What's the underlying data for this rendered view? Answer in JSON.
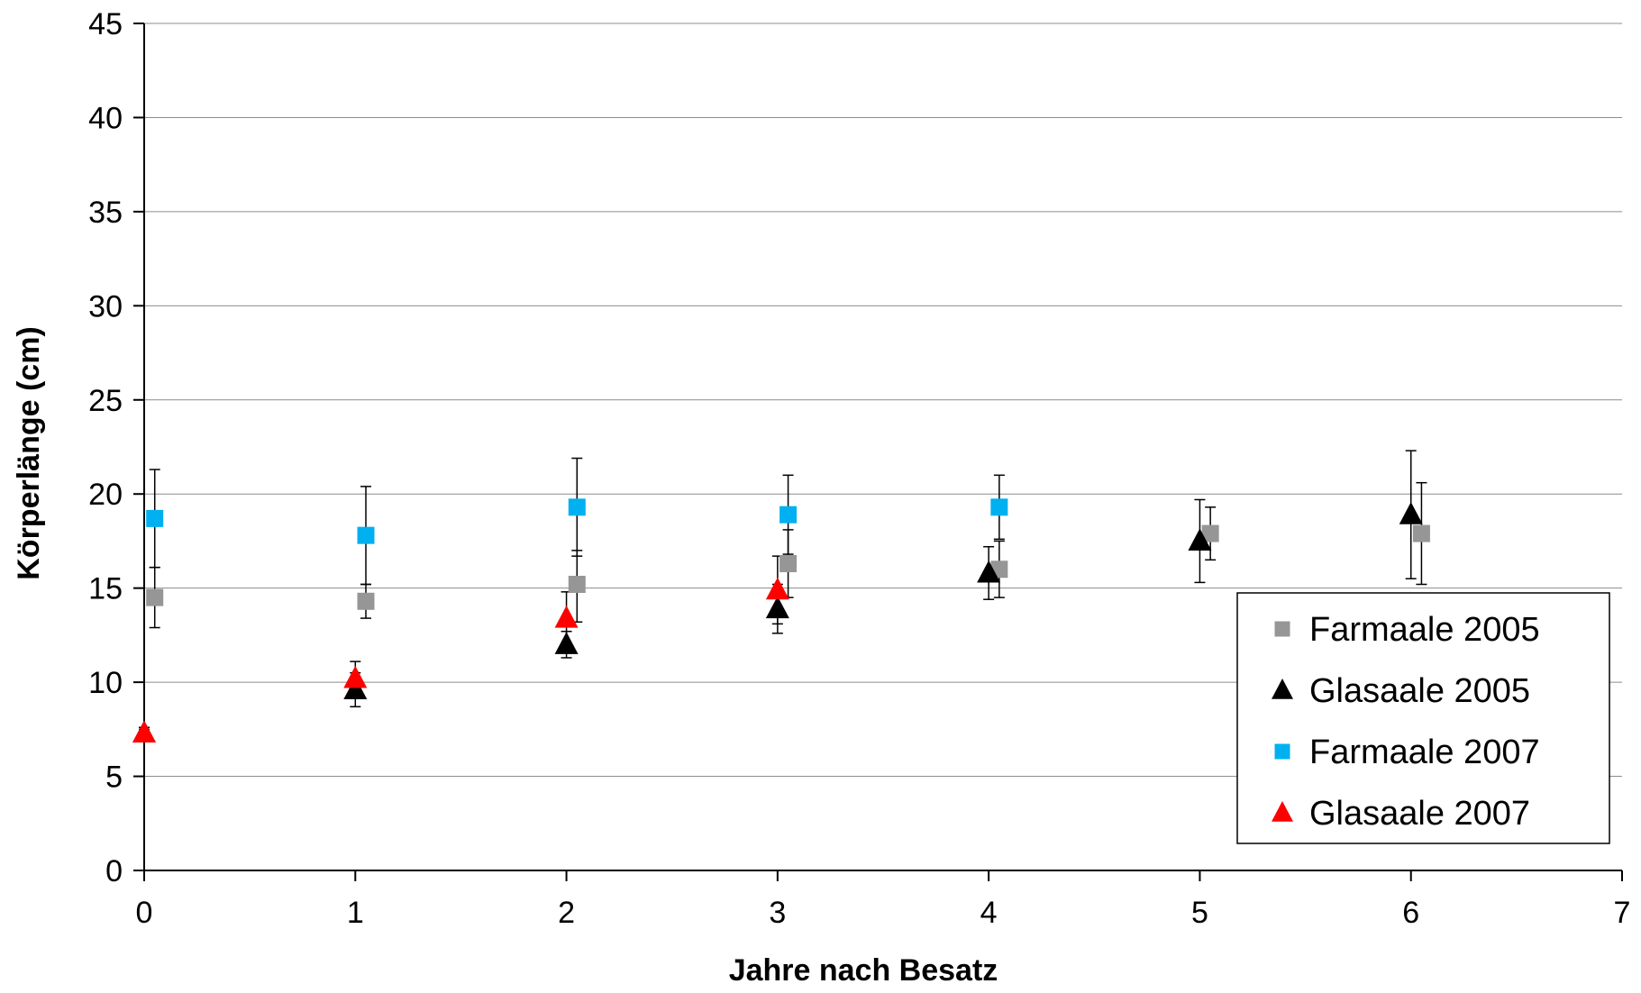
{
  "chart_data": {
    "type": "scatter",
    "title": "",
    "xlabel": "Jahre nach Besatz",
    "ylabel": "Körperlänge (cm)",
    "xlim": [
      0,
      7
    ],
    "ylim": [
      0,
      45
    ],
    "xticks": [
      0,
      1,
      2,
      3,
      4,
      5,
      6,
      7
    ],
    "yticks": [
      0,
      5,
      10,
      15,
      20,
      25,
      30,
      35,
      40,
      45
    ],
    "grid": "horizontal",
    "legend_position": "bottom-right",
    "series": [
      {
        "name": "Farmaale 2005",
        "marker": "square",
        "color": "#969696",
        "points": [
          {
            "x": 0.05,
            "y": 14.5,
            "lo": 12.9,
            "hi": 16.1
          },
          {
            "x": 1.05,
            "y": 14.3,
            "lo": 13.4,
            "hi": 15.2
          },
          {
            "x": 2.05,
            "y": 15.2,
            "lo": 13.2,
            "hi": 17.0
          },
          {
            "x": 3.05,
            "y": 16.3,
            "lo": 14.5,
            "hi": 18.1
          },
          {
            "x": 4.05,
            "y": 16.0,
            "lo": 14.5,
            "hi": 17.5
          },
          {
            "x": 5.05,
            "y": 17.9,
            "lo": 16.5,
            "hi": 19.3
          },
          {
            "x": 6.05,
            "y": 17.9,
            "lo": 15.2,
            "hi": 20.6
          }
        ]
      },
      {
        "name": "Glasaale 2005",
        "marker": "triangle",
        "color": "#000000",
        "points": [
          {
            "x": 0,
            "y": 7.3,
            "lo": 7.0,
            "hi": 7.6
          },
          {
            "x": 1,
            "y": 9.6,
            "lo": 8.7,
            "hi": 10.5
          },
          {
            "x": 2,
            "y": 12.0,
            "lo": 11.3,
            "hi": 12.7
          },
          {
            "x": 3,
            "y": 13.9,
            "lo": 12.6,
            "hi": 15.2
          },
          {
            "x": 4,
            "y": 15.8,
            "lo": 14.4,
            "hi": 17.2
          },
          {
            "x": 5,
            "y": 17.5,
            "lo": 15.3,
            "hi": 19.7
          },
          {
            "x": 6,
            "y": 18.9,
            "lo": 15.5,
            "hi": 22.3
          }
        ]
      },
      {
        "name": "Farmaale 2007",
        "marker": "square",
        "color": "#00B0F0",
        "points": [
          {
            "x": 0.05,
            "y": 18.7,
            "lo": 16.1,
            "hi": 21.3
          },
          {
            "x": 1.05,
            "y": 17.8,
            "lo": 15.2,
            "hi": 20.4
          },
          {
            "x": 2.05,
            "y": 19.3,
            "lo": 16.7,
            "hi": 21.9
          },
          {
            "x": 3.05,
            "y": 18.9,
            "lo": 16.8,
            "hi": 21.0
          },
          {
            "x": 4.05,
            "y": 19.3,
            "lo": 17.6,
            "hi": 21.0
          }
        ]
      },
      {
        "name": "Glasaale 2007",
        "marker": "triangle",
        "color": "#FF0000",
        "points": [
          {
            "x": 0,
            "y": 7.3,
            "lo": 7.1,
            "hi": 7.5
          },
          {
            "x": 1,
            "y": 10.2,
            "lo": 9.3,
            "hi": 11.1
          },
          {
            "x": 2,
            "y": 13.4,
            "lo": 12.0,
            "hi": 14.8
          },
          {
            "x": 3,
            "y": 14.9,
            "lo": 13.1,
            "hi": 16.7
          }
        ]
      }
    ]
  }
}
